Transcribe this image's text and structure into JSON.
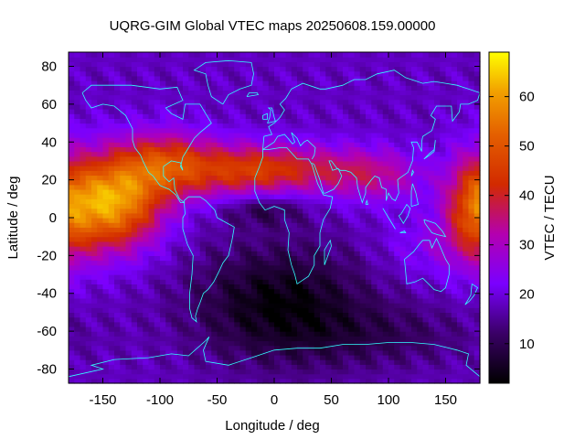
{
  "chart_data": {
    "type": "heatmap",
    "title": "UQRG-GIM Global VTEC maps 20250608.159.00000",
    "xlabel": "Longitude / deg",
    "ylabel": "Latitude / deg",
    "colorbar_label": "VTEC / TECU",
    "xlim": [
      -180,
      180
    ],
    "ylim": [
      -87.5,
      87.5
    ],
    "x_ticks": [
      -150,
      -100,
      -50,
      0,
      50,
      100,
      150
    ],
    "x_tick_labels": [
      "-150",
      "-100",
      "-50",
      "0",
      "50",
      "100",
      "150"
    ],
    "y_ticks": [
      80,
      60,
      40,
      20,
      0,
      -20,
      -40,
      -60,
      -80
    ],
    "y_tick_labels": [
      "80",
      "60",
      "40",
      "20",
      "0",
      "-20",
      "-40",
      "-60",
      "-80"
    ],
    "colorbar_range": [
      2,
      69
    ],
    "colorbar_ticks": [
      10,
      20,
      30,
      40,
      50,
      60
    ],
    "colorbar_tick_labels": [
      "10",
      "20",
      "30",
      "40",
      "50",
      "60"
    ],
    "colormap": "gnuplot black-purple-red-orange-yellow",
    "grid_lon_step": 5,
    "grid_lat_step": 2.5,
    "coastline_color": "#33ffff",
    "field_components": [
      {
        "region": "background",
        "vtec": 18
      },
      {
        "region": "east-pacific crest",
        "lon": -143,
        "lat": 8,
        "amplitude": 42
      },
      {
        "region": "africa-asia north band",
        "lon": 20,
        "lat": 25,
        "amplitude": 16
      },
      {
        "region": "south atlantic minimum",
        "lon": 5,
        "lat": -45,
        "amplitude": -15
      },
      {
        "region": "western pacific-australia",
        "lon": 175,
        "lat": 5,
        "amplitude": 22
      }
    ]
  }
}
